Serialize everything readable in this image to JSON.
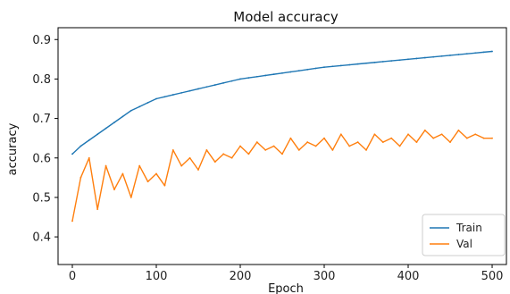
{
  "chart_data": {
    "type": "line",
    "title": "Model accuracy",
    "xlabel": "Epoch",
    "ylabel": "accuracy",
    "xlim": [
      -17,
      517
    ],
    "ylim": [
      0.33,
      0.93
    ],
    "x_ticks": [
      0,
      100,
      200,
      300,
      400,
      500
    ],
    "y_ticks": [
      0.4,
      0.5,
      0.6,
      0.7,
      0.8,
      0.9
    ],
    "x_tick_labels": [
      "0",
      "100",
      "200",
      "300",
      "400",
      "500"
    ],
    "y_tick_labels": [
      "0.4",
      "0.5",
      "0.6",
      "0.7",
      "0.8",
      "0.9"
    ],
    "grid": false,
    "legend_position": "lower-right",
    "series": [
      {
        "name": "Train",
        "color": "#1f77b4",
        "x": [
          0,
          10,
          20,
          30,
          40,
          50,
          60,
          70,
          80,
          90,
          100,
          110,
          120,
          130,
          140,
          150,
          160,
          170,
          180,
          190,
          200,
          210,
          220,
          230,
          240,
          250,
          260,
          270,
          280,
          290,
          300,
          310,
          320,
          330,
          340,
          350,
          360,
          370,
          380,
          390,
          400,
          410,
          420,
          430,
          440,
          450,
          460,
          470,
          480,
          490,
          500
        ],
        "values": [
          0.61,
          0.63,
          0.645,
          0.66,
          0.675,
          0.69,
          0.705,
          0.72,
          0.73,
          0.74,
          0.75,
          0.755,
          0.76,
          0.765,
          0.77,
          0.775,
          0.78,
          0.785,
          0.79,
          0.795,
          0.8,
          0.803,
          0.806,
          0.809,
          0.812,
          0.815,
          0.818,
          0.821,
          0.824,
          0.827,
          0.83,
          0.832,
          0.834,
          0.836,
          0.838,
          0.84,
          0.842,
          0.844,
          0.846,
          0.848,
          0.85,
          0.852,
          0.854,
          0.856,
          0.858,
          0.86,
          0.862,
          0.864,
          0.866,
          0.868,
          0.87
        ]
      },
      {
        "name": "Val",
        "color": "#ff7f0e",
        "x": [
          0,
          10,
          20,
          30,
          40,
          50,
          60,
          70,
          80,
          90,
          100,
          110,
          120,
          130,
          140,
          150,
          160,
          170,
          180,
          190,
          200,
          210,
          220,
          230,
          240,
          250,
          260,
          270,
          280,
          290,
          300,
          310,
          320,
          330,
          340,
          350,
          360,
          370,
          380,
          390,
          400,
          410,
          420,
          430,
          440,
          450,
          460,
          470,
          480,
          490,
          500
        ],
        "values": [
          0.44,
          0.55,
          0.6,
          0.47,
          0.58,
          0.52,
          0.56,
          0.5,
          0.58,
          0.54,
          0.56,
          0.53,
          0.62,
          0.58,
          0.6,
          0.57,
          0.62,
          0.59,
          0.61,
          0.6,
          0.63,
          0.61,
          0.64,
          0.62,
          0.63,
          0.61,
          0.65,
          0.62,
          0.64,
          0.63,
          0.65,
          0.62,
          0.66,
          0.63,
          0.64,
          0.62,
          0.66,
          0.64,
          0.65,
          0.63,
          0.66,
          0.64,
          0.67,
          0.65,
          0.66,
          0.64,
          0.67,
          0.65,
          0.66,
          0.65,
          0.65
        ]
      }
    ]
  }
}
